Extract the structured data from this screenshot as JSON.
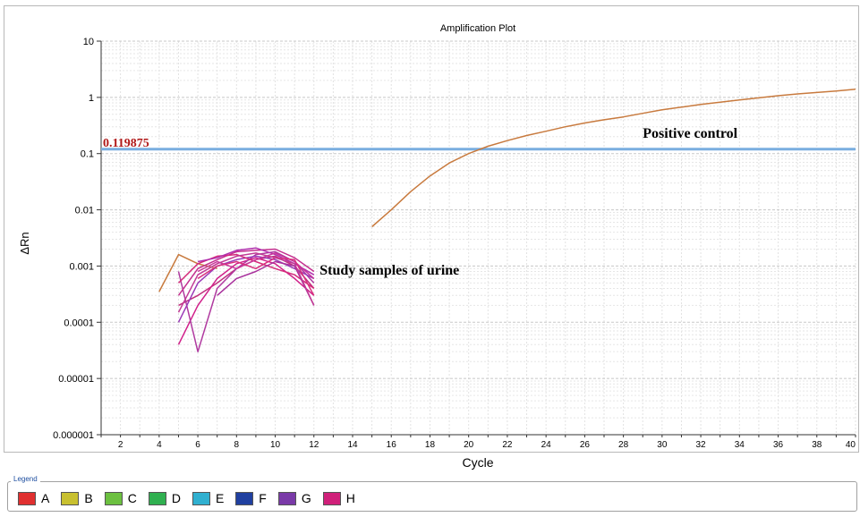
{
  "chart_data": {
    "type": "line",
    "title": "Amplification Plot",
    "xlabel": "Cycle",
    "ylabel": "ΔRn",
    "xlim": [
      1,
      40
    ],
    "ylim": [
      1e-06,
      10
    ],
    "y_scale": "log",
    "grid": true,
    "x_ticks": [
      2,
      4,
      6,
      8,
      10,
      12,
      14,
      16,
      18,
      20,
      22,
      24,
      26,
      28,
      30,
      32,
      34,
      36,
      38,
      40
    ],
    "y_ticks": [
      {
        "value": 10,
        "label": "10"
      },
      {
        "value": 1,
        "label": "1"
      },
      {
        "value": 0.1,
        "label": "0.1"
      },
      {
        "value": 0.01,
        "label": "0.01"
      },
      {
        "value": 0.001,
        "label": "0.001"
      },
      {
        "value": 0.0001,
        "label": "0.0001"
      },
      {
        "value": 1e-05,
        "label": "0.00001"
      },
      {
        "value": 1e-06,
        "label": "0.000001"
      }
    ],
    "threshold": {
      "value": 0.119875,
      "label": "0.119875",
      "color": "#7aaee0"
    },
    "annotations": {
      "positive": {
        "text": "Positive control",
        "x": 29,
        "y": 0.19
      },
      "study": {
        "text": "Study samples of urine",
        "x": 12.3,
        "y": 0.0007
      }
    },
    "series": [
      {
        "color": "#c87a3e",
        "x": [
          15,
          16,
          17,
          18,
          19,
          20,
          21,
          22,
          23,
          24,
          25,
          26,
          27,
          28,
          29,
          30,
          31,
          32,
          33,
          34,
          35,
          36,
          37,
          38,
          39,
          40
        ],
        "y": [
          0.005,
          0.01,
          0.021,
          0.04,
          0.068,
          0.1,
          0.135,
          0.17,
          0.21,
          0.25,
          0.3,
          0.35,
          0.4,
          0.45,
          0.52,
          0.6,
          0.67,
          0.75,
          0.82,
          0.9,
          0.98,
          1.07,
          1.15,
          1.22,
          1.3,
          1.4
        ]
      },
      {
        "color": "#c87a3e",
        "x": [
          4,
          5,
          6,
          7
        ],
        "y": [
          0.00035,
          0.0016,
          0.0011,
          0.0009
        ]
      },
      {
        "color": "#c0307e",
        "x": [
          5,
          6,
          7,
          8,
          9,
          10,
          11,
          12
        ],
        "y": [
          0.0002,
          0.0003,
          0.0005,
          0.0009,
          0.0013,
          0.0015,
          0.001,
          0.0004
        ]
      },
      {
        "color": "#d1208a",
        "x": [
          5,
          6,
          7,
          8,
          9,
          10,
          11,
          12
        ],
        "y": [
          4e-05,
          0.0002,
          0.0006,
          0.0011,
          0.0014,
          0.0011,
          0.0006,
          0.0003
        ]
      },
      {
        "color": "#b03aa0",
        "x": [
          5,
          6,
          7,
          8,
          9,
          10,
          11,
          12
        ],
        "y": [
          0.0008,
          3e-05,
          0.0004,
          0.0009,
          0.0016,
          0.0018,
          0.0012,
          0.0005
        ]
      },
      {
        "color": "#c42f8f",
        "x": [
          5,
          6,
          7,
          8,
          9,
          10,
          11,
          12
        ],
        "y": [
          0.0003,
          0.0009,
          0.0013,
          0.0018,
          0.0019,
          0.002,
          0.0014,
          0.0008
        ]
      },
      {
        "color": "#9a3ab8",
        "x": [
          5,
          6,
          7,
          8,
          9,
          10,
          11,
          12
        ],
        "y": [
          0.0001,
          0.0005,
          0.001,
          0.0013,
          0.0015,
          0.0013,
          0.0009,
          0.0006
        ]
      },
      {
        "color": "#d42a7a",
        "x": [
          5,
          6,
          7,
          8,
          9,
          10,
          11,
          12
        ],
        "y": [
          0.0005,
          0.0011,
          0.0015,
          0.0016,
          0.0012,
          0.0009,
          0.0007,
          0.0004
        ]
      },
      {
        "color": "#b02fae",
        "x": [
          6,
          7,
          8,
          9,
          10,
          11,
          12
        ],
        "y": [
          0.0012,
          0.0014,
          0.0019,
          0.0021,
          0.0016,
          0.0011,
          0.0007
        ]
      },
      {
        "color": "#c8369a",
        "x": [
          6,
          7,
          8,
          9,
          10,
          11,
          12
        ],
        "y": [
          0.0008,
          0.0012,
          0.0009,
          0.0013,
          0.0017,
          0.0012,
          0.0006
        ]
      },
      {
        "color": "#a8309c",
        "x": [
          7,
          8,
          9,
          10,
          11,
          12
        ],
        "y": [
          0.0003,
          0.0006,
          0.0008,
          0.0012,
          0.001,
          0.0002
        ]
      },
      {
        "color": "#d8307e",
        "x": [
          6,
          7,
          8,
          9,
          10,
          11,
          12
        ],
        "y": [
          0.0006,
          0.001,
          0.0012,
          0.0009,
          0.0014,
          0.0013,
          0.0003
        ]
      },
      {
        "color": "#c23b96",
        "x": [
          5,
          6,
          7,
          8,
          9,
          10,
          11,
          12
        ],
        "y": [
          0.00015,
          0.0007,
          0.0011,
          0.0015,
          0.0017,
          0.0014,
          0.0011,
          0.0002
        ]
      }
    ]
  },
  "legend": {
    "title": "Legend",
    "items": [
      {
        "label": "A",
        "color": "#e03030"
      },
      {
        "label": "B",
        "color": "#c8c030"
      },
      {
        "label": "C",
        "color": "#6cc040"
      },
      {
        "label": "D",
        "color": "#30b050"
      },
      {
        "label": "E",
        "color": "#30b0d0"
      },
      {
        "label": "F",
        "color": "#2040a0"
      },
      {
        "label": "G",
        "color": "#7a3aa8"
      },
      {
        "label": "H",
        "color": "#d0207a"
      }
    ]
  }
}
